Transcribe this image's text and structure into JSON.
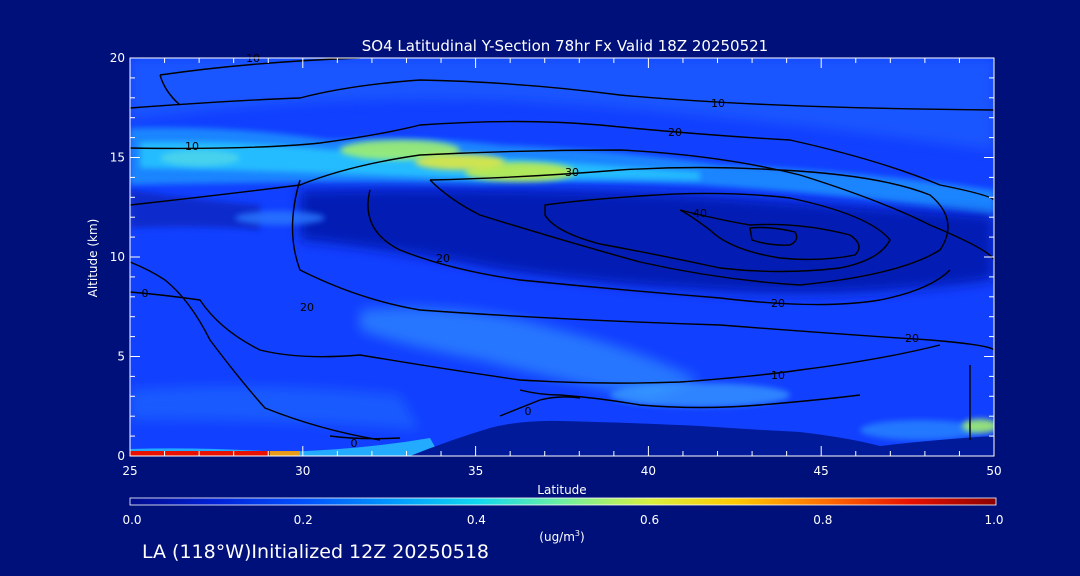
{
  "chart_data": {
    "type": "heatmap",
    "title": "SO4 Latitudinal Y-Section 78hr  Fx Valid 18Z 20250521",
    "xlabel": "Latitude",
    "ylabel": "Altitude (km)",
    "xlim": [
      25,
      50
    ],
    "ylim": [
      0,
      20
    ],
    "x_ticks": [
      "25",
      "30",
      "35",
      "40",
      "45",
      "50"
    ],
    "y_ticks": [
      "0",
      "5",
      "10",
      "15",
      "20"
    ],
    "colorbar": {
      "min": 0.0,
      "max": 1.0,
      "ticks": [
        "0.0",
        "0.2",
        "0.4",
        "0.6",
        "0.8",
        "1.0"
      ],
      "unit_base": "(ug/m",
      "unit_sup": "3",
      "unit_end": ")"
    },
    "features": [
      {
        "name": "upper layer",
        "lat": [
          25,
          50
        ],
        "alt_km": [
          13.5,
          16.5
        ],
        "value_range": [
          0.3,
          0.62
        ]
      },
      {
        "name": "surface max",
        "lat": [
          25,
          29
        ],
        "alt_km": [
          0,
          0.3
        ],
        "value": 1.0
      },
      {
        "name": "mid-level lobe",
        "lat": [
          27,
          33
        ],
        "alt_km": [
          11,
          12.5
        ],
        "value": 0.35
      },
      {
        "name": "terrain",
        "lat": [
          33.5,
          48
        ],
        "alt_km": [
          0,
          1.8
        ]
      }
    ],
    "contour_labels": [
      "10",
      "10",
      "10",
      "20",
      "20",
      "20",
      "20",
      "20",
      "30",
      "30",
      "40",
      "0",
      "0",
      "0",
      "0",
      "10",
      "10",
      "10"
    ],
    "colors": {
      "background": "#00107a",
      "plot_base": "#1240ff",
      "terrain": "#001a9a"
    }
  },
  "footer": "LA (118°W)Initialized 12Z 20250518"
}
